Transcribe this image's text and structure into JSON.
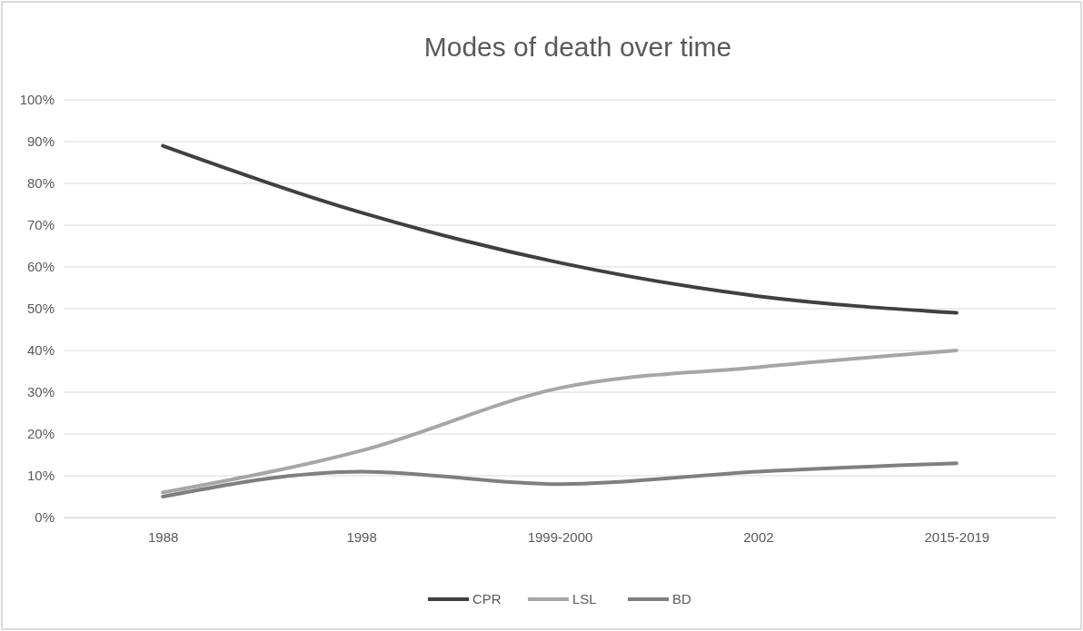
{
  "chart_data": {
    "type": "line",
    "title": "Modes of death over time",
    "categories": [
      "1988",
      "1998",
      "1999-2000",
      "2002",
      "2015-2019"
    ],
    "series": [
      {
        "name": "CPR",
        "color": "#404040",
        "values": [
          89,
          73,
          61,
          53,
          49
        ]
      },
      {
        "name": "LSL",
        "color": "#a6a6a6",
        "values": [
          6,
          16,
          31,
          36,
          40
        ]
      },
      {
        "name": "BD",
        "color": "#7f7f7f",
        "values": [
          5,
          11,
          8,
          11,
          13
        ]
      }
    ],
    "ylim": [
      0,
      100
    ],
    "yticks": [
      {
        "value": 0,
        "label": "0%"
      },
      {
        "value": 10,
        "label": "10%"
      },
      {
        "value": 20,
        "label": "20%"
      },
      {
        "value": 30,
        "label": "30%"
      },
      {
        "value": 40,
        "label": "40%"
      },
      {
        "value": 50,
        "label": "50%"
      },
      {
        "value": 60,
        "label": "60%"
      },
      {
        "value": 70,
        "label": "70%"
      },
      {
        "value": 80,
        "label": "80%"
      },
      {
        "value": 90,
        "label": "90%"
      },
      {
        "value": 100,
        "label": "100%"
      }
    ],
    "grid": "y",
    "legend": "bottom",
    "marker": "none",
    "line_style": "solid"
  }
}
